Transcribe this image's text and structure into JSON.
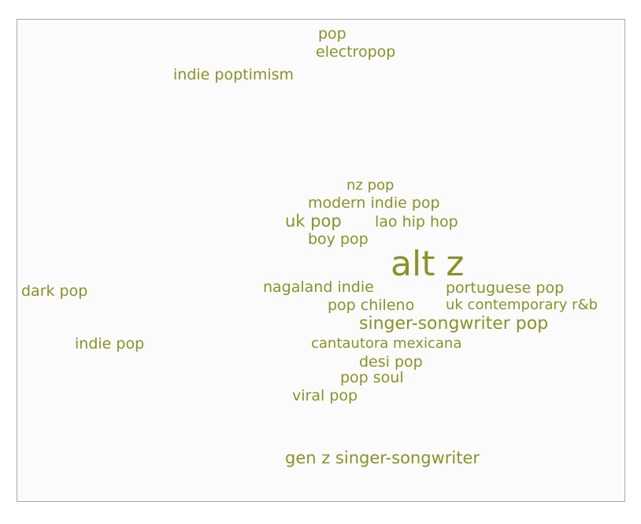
{
  "accent_color": "#8b9129",
  "genres": [
    {
      "label": "pop"
    },
    {
      "label": "electropop"
    },
    {
      "label": "indie poptimism"
    },
    {
      "label": "nz pop"
    },
    {
      "label": "modern indie pop"
    },
    {
      "label": "uk pop"
    },
    {
      "label": "lao hip hop"
    },
    {
      "label": "boy pop"
    },
    {
      "label": "alt z"
    },
    {
      "label": "dark pop"
    },
    {
      "label": "nagaland indie"
    },
    {
      "label": "portuguese pop"
    },
    {
      "label": "pop chileno"
    },
    {
      "label": "uk contemporary r&b"
    },
    {
      "label": "singer-songwriter pop"
    },
    {
      "label": "indie pop"
    },
    {
      "label": "cantautora mexicana"
    },
    {
      "label": "desi pop"
    },
    {
      "label": "pop soul"
    },
    {
      "label": "viral pop"
    },
    {
      "label": "gen z singer-songwriter"
    }
  ]
}
